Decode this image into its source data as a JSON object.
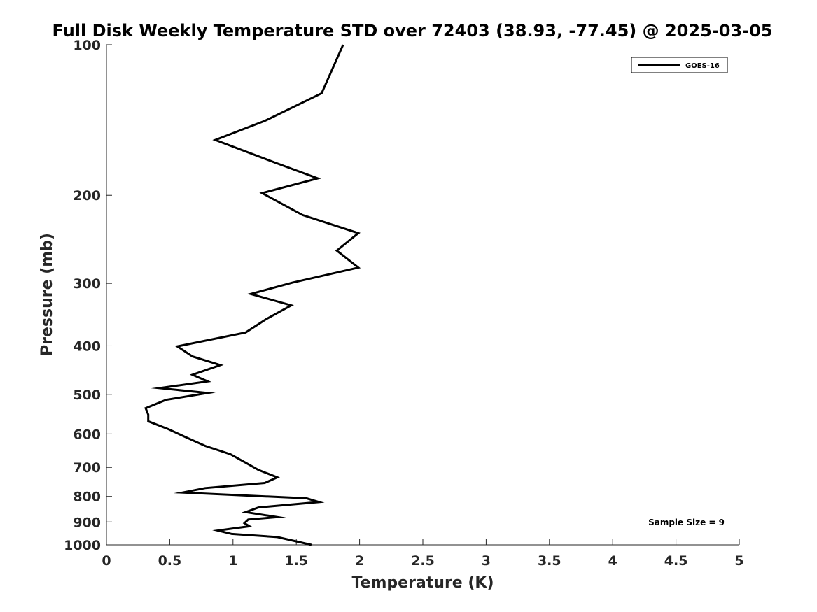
{
  "chart_data": {
    "type": "line",
    "title": "Full Disk Weekly Temperature STD over 72403 (38.93, -77.45) @ 2025-03-05",
    "xlabel": "Temperature (K)",
    "ylabel": "Pressure (mb)",
    "xlim": [
      0,
      5
    ],
    "ylim": [
      100,
      1000
    ],
    "y_scale": "log",
    "y_reversed": true,
    "x_ticks": [
      "0",
      "0.5",
      "1",
      "1.5",
      "2",
      "2.5",
      "3",
      "3.5",
      "4",
      "4.5",
      "5"
    ],
    "y_ticks": [
      "100",
      "200",
      "300",
      "400",
      "500",
      "600",
      "700",
      "800",
      "900",
      "1000"
    ],
    "grid": false,
    "legend_position": "top-right",
    "series": [
      {
        "name": "GOES-16",
        "color": "#000000",
        "points": [
          [
            1.87,
            100
          ],
          [
            1.7,
            125
          ],
          [
            1.25,
            142
          ],
          [
            0.86,
            155
          ],
          [
            1.33,
            172
          ],
          [
            1.67,
            185
          ],
          [
            1.23,
            198
          ],
          [
            1.55,
            219
          ],
          [
            1.99,
            238
          ],
          [
            1.82,
            258
          ],
          [
            1.99,
            279
          ],
          [
            1.47,
            299
          ],
          [
            1.14,
            315
          ],
          [
            1.46,
            332
          ],
          [
            1.26,
            354
          ],
          [
            1.1,
            376
          ],
          [
            0.56,
            401
          ],
          [
            0.68,
            420
          ],
          [
            0.9,
            437
          ],
          [
            0.68,
            457
          ],
          [
            0.8,
            471
          ],
          [
            0.42,
            486
          ],
          [
            0.8,
            497
          ],
          [
            0.47,
            513
          ],
          [
            0.31,
            533
          ],
          [
            0.33,
            549
          ],
          [
            0.33,
            566
          ],
          [
            0.49,
            587
          ],
          [
            0.62,
            608
          ],
          [
            0.78,
            634
          ],
          [
            0.98,
            659
          ],
          [
            1.09,
            683
          ],
          [
            1.2,
            708
          ],
          [
            1.35,
            733
          ],
          [
            1.25,
            752
          ],
          [
            0.78,
            770
          ],
          [
            0.6,
            786
          ],
          [
            1.58,
            807
          ],
          [
            1.68,
            821
          ],
          [
            1.2,
            842
          ],
          [
            1.1,
            860
          ],
          [
            1.35,
            880
          ],
          [
            1.12,
            890
          ],
          [
            1.09,
            905
          ],
          [
            1.13,
            918
          ],
          [
            0.88,
            936
          ],
          [
            0.99,
            951
          ],
          [
            1.35,
            965
          ],
          [
            1.62,
            1000
          ]
        ]
      }
    ],
    "annotations": [
      "Sample Size = 9"
    ]
  }
}
